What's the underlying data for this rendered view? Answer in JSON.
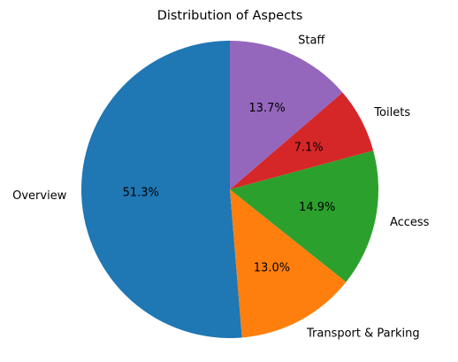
{
  "chart_data": {
    "type": "pie",
    "title": "Distribution of Aspects",
    "start_angle_deg": 90,
    "direction": "counterclockwise",
    "categories": [
      "Overview",
      "Transport & Parking",
      "Access",
      "Toilets",
      "Staff"
    ],
    "values": [
      51.3,
      13.0,
      14.9,
      7.1,
      13.7
    ],
    "value_labels": [
      "51.3%",
      "13.0%",
      "14.9%",
      "7.1%",
      "13.7%"
    ],
    "colors": [
      "#1f77b4",
      "#ff7f0e",
      "#2ca02c",
      "#d62728",
      "#9467bd"
    ],
    "legend": "none"
  }
}
